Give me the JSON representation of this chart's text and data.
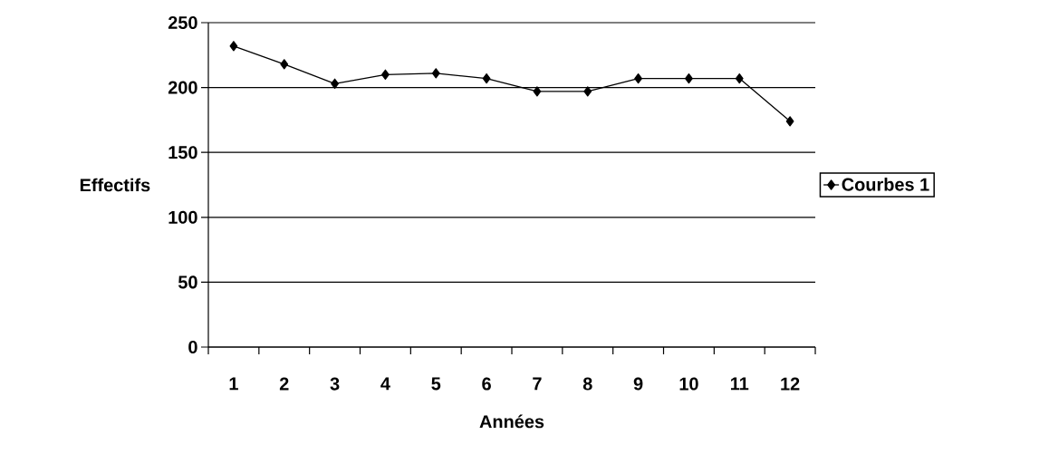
{
  "chart_data": {
    "type": "line",
    "xlabel": "Années",
    "ylabel": "Effectifs",
    "categories": [
      "1",
      "2",
      "3",
      "4",
      "5",
      "6",
      "7",
      "8",
      "9",
      "10",
      "11",
      "12"
    ],
    "series": [
      {
        "name": "Courbes 1",
        "color": "#000000",
        "values": [
          232,
          218,
          203,
          210,
          211,
          207,
          197,
          197,
          207,
          207,
          207,
          174
        ]
      }
    ],
    "ylim": [
      0,
      250
    ],
    "yticks": [
      0,
      50,
      100,
      150,
      200,
      250
    ],
    "grid": "y",
    "legend": "right",
    "marker": "diamond",
    "line_style": "solid"
  }
}
